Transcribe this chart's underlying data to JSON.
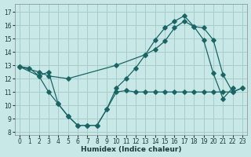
{
  "xlabel": "Humidex (Indice chaleur)",
  "bg_color": "#c8e8e8",
  "grid_color": "#a8cccc",
  "line_color": "#1a6464",
  "xlim": [
    -0.5,
    23.5
  ],
  "ylim": [
    7.8,
    17.6
  ],
  "yticks": [
    8,
    9,
    10,
    11,
    12,
    13,
    14,
    15,
    16,
    17
  ],
  "xticks": [
    0,
    1,
    2,
    3,
    4,
    5,
    6,
    7,
    8,
    9,
    10,
    11,
    12,
    13,
    14,
    15,
    16,
    17,
    18,
    19,
    20,
    21,
    22,
    23
  ],
  "line1_x": [
    0,
    1,
    2,
    3,
    4,
    5,
    6,
    7,
    8,
    9,
    10,
    11,
    12,
    13,
    14,
    15,
    16,
    17,
    18,
    19,
    20,
    21,
    22
  ],
  "line1_y": [
    12.9,
    12.8,
    12.2,
    12.5,
    10.1,
    9.2,
    8.5,
    8.5,
    8.5,
    9.7,
    11.3,
    12.0,
    12.8,
    13.8,
    14.9,
    15.8,
    16.3,
    16.7,
    15.9,
    14.9,
    12.4,
    10.5,
    11.3
  ],
  "line2_x": [
    0,
    2,
    3,
    4,
    5,
    6,
    7,
    8,
    9,
    10,
    11,
    12,
    13,
    14,
    15,
    16,
    17,
    18,
    19,
    20,
    21,
    22,
    23
  ],
  "line2_y": [
    12.9,
    12.2,
    11.0,
    10.1,
    9.2,
    8.5,
    8.5,
    8.5,
    9.7,
    11.0,
    11.1,
    11.0,
    11.0,
    11.0,
    11.0,
    11.0,
    11.0,
    11.0,
    11.0,
    11.0,
    11.0,
    11.0,
    11.3
  ],
  "line3_x": [
    0,
    2,
    3,
    5,
    10,
    13,
    14,
    15,
    16,
    17,
    18,
    19,
    20,
    21,
    22,
    23
  ],
  "line3_y": [
    12.9,
    12.5,
    12.2,
    12.0,
    13.0,
    13.8,
    14.2,
    14.8,
    15.8,
    16.3,
    15.9,
    15.8,
    14.9,
    12.3,
    11.0,
    11.3
  ]
}
